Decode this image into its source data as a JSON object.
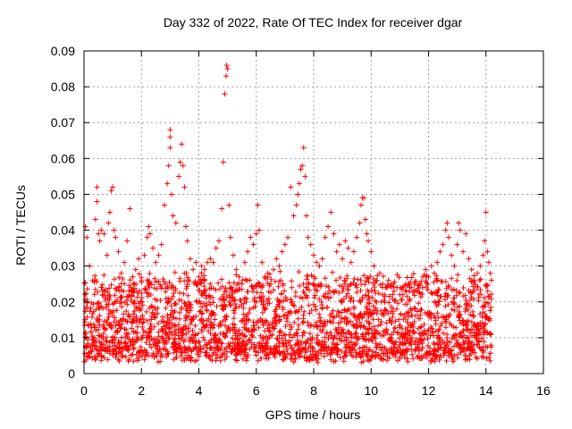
{
  "chart_data": {
    "type": "scatter",
    "title": "Day 332 of 2022, Rate Of TEC Index for receiver dgar",
    "xlabel": "GPS time / hours",
    "ylabel": "ROTI / TECUs",
    "xlim": [
      0,
      16
    ],
    "ylim": [
      0,
      0.09
    ],
    "xticks": [
      0,
      2,
      4,
      6,
      8,
      10,
      12,
      14,
      16
    ],
    "yticks": [
      0,
      0.01,
      0.02,
      0.03,
      0.04,
      0.05,
      0.06,
      0.07,
      0.08,
      0.09
    ],
    "grid": true,
    "marker": "+",
    "color": "#ff0000",
    "points": [
      [
        0.05,
        0.041
      ],
      [
        0.1,
        0.038
      ],
      [
        0.2,
        0.03
      ],
      [
        0.3,
        0.026
      ],
      [
        0.4,
        0.043
      ],
      [
        0.45,
        0.048
      ],
      [
        0.45,
        0.052
      ],
      [
        0.5,
        0.039
      ],
      [
        0.55,
        0.037
      ],
      [
        0.6,
        0.04
      ],
      [
        0.7,
        0.039
      ],
      [
        0.8,
        0.033
      ],
      [
        0.85,
        0.042
      ],
      [
        0.9,
        0.045
      ],
      [
        0.95,
        0.051
      ],
      [
        1.0,
        0.052
      ],
      [
        1.05,
        0.04
      ],
      [
        1.1,
        0.038
      ],
      [
        1.2,
        0.034
      ],
      [
        1.3,
        0.028
      ],
      [
        1.4,
        0.031
      ],
      [
        1.5,
        0.037
      ],
      [
        1.6,
        0.046
      ],
      [
        1.7,
        0.027
      ],
      [
        1.8,
        0.029
      ],
      [
        1.9,
        0.032
      ],
      [
        2.0,
        0.026
      ],
      [
        2.1,
        0.033
      ],
      [
        2.2,
        0.038
      ],
      [
        2.25,
        0.041
      ],
      [
        2.3,
        0.039
      ],
      [
        2.4,
        0.035
      ],
      [
        2.5,
        0.031
      ],
      [
        2.6,
        0.033
      ],
      [
        2.7,
        0.036
      ],
      [
        2.8,
        0.047
      ],
      [
        2.9,
        0.053
      ],
      [
        2.95,
        0.058
      ],
      [
        3.0,
        0.063
      ],
      [
        3.0,
        0.066
      ],
      [
        3.0,
        0.068
      ],
      [
        3.05,
        0.05
      ],
      [
        3.1,
        0.044
      ],
      [
        3.2,
        0.042
      ],
      [
        3.3,
        0.055
      ],
      [
        3.35,
        0.059
      ],
      [
        3.4,
        0.064
      ],
      [
        3.45,
        0.058
      ],
      [
        3.5,
        0.052
      ],
      [
        3.55,
        0.041
      ],
      [
        3.6,
        0.037
      ],
      [
        3.7,
        0.032
      ],
      [
        3.8,
        0.029
      ],
      [
        3.9,
        0.031
      ],
      [
        4.0,
        0.027
      ],
      [
        4.1,
        0.03
      ],
      [
        4.2,
        0.029
      ],
      [
        4.3,
        0.031
      ],
      [
        4.4,
        0.032
      ],
      [
        4.5,
        0.031
      ],
      [
        4.6,
        0.035
      ],
      [
        4.7,
        0.037
      ],
      [
        4.8,
        0.046
      ],
      [
        4.85,
        0.059
      ],
      [
        4.9,
        0.078
      ],
      [
        4.95,
        0.083
      ],
      [
        4.97,
        0.086
      ],
      [
        5.0,
        0.085
      ],
      [
        5.05,
        0.047
      ],
      [
        5.1,
        0.038
      ],
      [
        5.2,
        0.033
      ],
      [
        5.3,
        0.029
      ],
      [
        5.4,
        0.027
      ],
      [
        5.5,
        0.025
      ],
      [
        5.6,
        0.031
      ],
      [
        5.7,
        0.034
      ],
      [
        5.8,
        0.038
      ],
      [
        5.9,
        0.036
      ],
      [
        6.0,
        0.039
      ],
      [
        6.05,
        0.047
      ],
      [
        6.1,
        0.04
      ],
      [
        6.2,
        0.031
      ],
      [
        6.3,
        0.027
      ],
      [
        6.4,
        0.028
      ],
      [
        6.5,
        0.025
      ],
      [
        6.6,
        0.029
      ],
      [
        6.7,
        0.032
      ],
      [
        6.8,
        0.03
      ],
      [
        6.9,
        0.034
      ],
      [
        7.0,
        0.036
      ],
      [
        7.1,
        0.038
      ],
      [
        7.2,
        0.052
      ],
      [
        7.3,
        0.044
      ],
      [
        7.4,
        0.047
      ],
      [
        7.45,
        0.05
      ],
      [
        7.5,
        0.053
      ],
      [
        7.55,
        0.057
      ],
      [
        7.6,
        0.058
      ],
      [
        7.65,
        0.063
      ],
      [
        7.7,
        0.055
      ],
      [
        7.75,
        0.044
      ],
      [
        7.8,
        0.038
      ],
      [
        7.9,
        0.036
      ],
      [
        8.0,
        0.033
      ],
      [
        8.1,
        0.031
      ],
      [
        8.2,
        0.03
      ],
      [
        8.3,
        0.032
      ],
      [
        8.4,
        0.038
      ],
      [
        8.5,
        0.041
      ],
      [
        8.6,
        0.045
      ],
      [
        8.7,
        0.039
      ],
      [
        8.8,
        0.034
      ],
      [
        8.9,
        0.036
      ],
      [
        9.0,
        0.032
      ],
      [
        9.1,
        0.037
      ],
      [
        9.2,
        0.035
      ],
      [
        9.3,
        0.031
      ],
      [
        9.4,
        0.034
      ],
      [
        9.5,
        0.038
      ],
      [
        9.6,
        0.042
      ],
      [
        9.65,
        0.047
      ],
      [
        9.7,
        0.049
      ],
      [
        9.75,
        0.049
      ],
      [
        9.8,
        0.043
      ],
      [
        9.85,
        0.039
      ],
      [
        9.9,
        0.037
      ],
      [
        10.0,
        0.034
      ],
      [
        10.1,
        0.03
      ],
      [
        10.2,
        0.026
      ],
      [
        10.3,
        0.028
      ],
      [
        10.4,
        0.025
      ],
      [
        10.5,
        0.024
      ],
      [
        10.6,
        0.026
      ],
      [
        10.7,
        0.025
      ],
      [
        10.8,
        0.023
      ],
      [
        10.9,
        0.024
      ],
      [
        11.0,
        0.022
      ],
      [
        11.1,
        0.024
      ],
      [
        11.2,
        0.023
      ],
      [
        11.3,
        0.025
      ],
      [
        11.4,
        0.024
      ],
      [
        11.5,
        0.025
      ],
      [
        11.6,
        0.023
      ],
      [
        11.7,
        0.025
      ],
      [
        11.8,
        0.027
      ],
      [
        11.9,
        0.029
      ],
      [
        12.0,
        0.027
      ],
      [
        12.1,
        0.03
      ],
      [
        12.2,
        0.028
      ],
      [
        12.3,
        0.031
      ],
      [
        12.4,
        0.034
      ],
      [
        12.5,
        0.036
      ],
      [
        12.6,
        0.04
      ],
      [
        12.65,
        0.042
      ],
      [
        12.7,
        0.038
      ],
      [
        12.8,
        0.033
      ],
      [
        12.9,
        0.03
      ],
      [
        13.0,
        0.036
      ],
      [
        13.05,
        0.042
      ],
      [
        13.1,
        0.04
      ],
      [
        13.2,
        0.034
      ],
      [
        13.3,
        0.039
      ],
      [
        13.4,
        0.032
      ],
      [
        13.5,
        0.029
      ],
      [
        13.6,
        0.026
      ],
      [
        13.7,
        0.028
      ],
      [
        13.8,
        0.03
      ],
      [
        13.9,
        0.033
      ],
      [
        13.95,
        0.037
      ],
      [
        14.0,
        0.045
      ],
      [
        14.05,
        0.034
      ],
      [
        14.1,
        0.031
      ],
      [
        14.15,
        0.028
      ]
    ]
  }
}
